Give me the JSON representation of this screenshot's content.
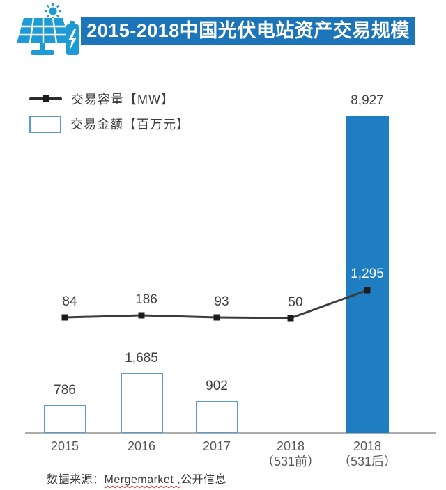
{
  "header": {
    "title": "2015-2018中国光伏电站资产交易规模",
    "banner_bg": "#1C74B9",
    "icon_color": "#1E9AD6",
    "icon_name": "solar-panel-battery-sun-icon"
  },
  "legend": {
    "items": [
      {
        "label": "交易容量【MW】",
        "swatch": "line-with-square-marker",
        "color": "#2B2B2B"
      },
      {
        "label": "交易金额【百万元】",
        "swatch": "outlined-box",
        "color": "#5B9BD5"
      }
    ]
  },
  "chart_data": {
    "type": "bar+line",
    "title": "2015-2018中国光伏电站资产交易规模",
    "categories": [
      "2015",
      "2016",
      "2017",
      "2018（531前）",
      "2018（531后）"
    ],
    "category_labels": [
      [
        "2015"
      ],
      [
        "2016"
      ],
      [
        "2017"
      ],
      [
        "2018",
        "（531前）"
      ],
      [
        "2018",
        "（531后）"
      ]
    ],
    "series": [
      {
        "name": "交易容量【MW】",
        "type": "line",
        "values": [
          84,
          186,
          93,
          50,
          1295
        ],
        "labels": [
          "84",
          "186",
          "93",
          "50",
          "1,295"
        ],
        "color": "#3B3B3B",
        "marker": "square",
        "marker_color": "#1C1C1C"
      },
      {
        "name": "交易金额【百万元】",
        "type": "bar",
        "values": [
          786,
          1685,
          902,
          null,
          8927
        ],
        "labels": [
          "786",
          "1,685",
          "902",
          null,
          "8,927"
        ],
        "outline_color": "#5B9BD5",
        "solid_color": "#1F7EC2",
        "solid_bars": [
          4
        ]
      }
    ],
    "bar_axis_max": 8927,
    "grid": false,
    "legend_position": "top-left",
    "axis_line_color": "#ACACAC",
    "value_label_inside_bar_point": 4
  },
  "footer": {
    "prefix": "数据来源：",
    "misspelled": "Mergemarket ,",
    "suffix": "公开信息"
  }
}
